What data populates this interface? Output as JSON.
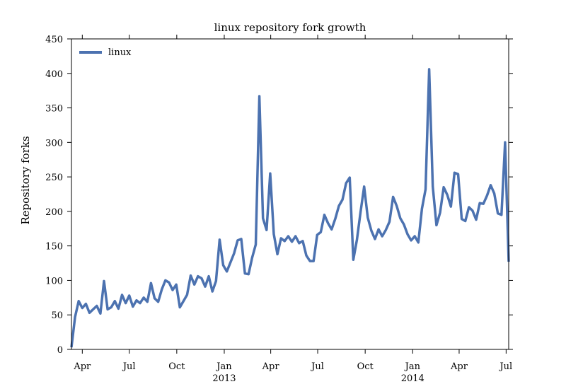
{
  "chart_data": {
    "type": "line",
    "title": "linux repository fork growth",
    "xlabel": "",
    "ylabel": "Repository forks",
    "ylim": [
      0,
      450
    ],
    "yticks": [
      0,
      50,
      100,
      150,
      200,
      250,
      300,
      350,
      400,
      450
    ],
    "xlim": [
      "2012-03-11",
      "2014-07-06"
    ],
    "xticks": [
      {
        "date": "2012-04-01",
        "label": "Apr",
        "sublabel": ""
      },
      {
        "date": "2012-07-01",
        "label": "Jul",
        "sublabel": ""
      },
      {
        "date": "2012-10-01",
        "label": "Oct",
        "sublabel": ""
      },
      {
        "date": "2013-01-01",
        "label": "Jan",
        "sublabel": "2013"
      },
      {
        "date": "2013-04-01",
        "label": "Apr",
        "sublabel": ""
      },
      {
        "date": "2013-07-01",
        "label": "Jul",
        "sublabel": ""
      },
      {
        "date": "2013-10-01",
        "label": "Oct",
        "sublabel": ""
      },
      {
        "date": "2014-01-01",
        "label": "Jan",
        "sublabel": "2014"
      },
      {
        "date": "2014-04-01",
        "label": "Apr",
        "sublabel": ""
      },
      {
        "date": "2014-07-01",
        "label": "Jul",
        "sublabel": ""
      }
    ],
    "legend": {
      "placement": "top-left"
    },
    "grid": false,
    "series": [
      {
        "name": "linux",
        "color": "#4c72b0",
        "points": [
          [
            "2012-03-11",
            3
          ],
          [
            "2012-03-18",
            47
          ],
          [
            "2012-03-25",
            70
          ],
          [
            "2012-04-01",
            60
          ],
          [
            "2012-04-08",
            66
          ],
          [
            "2012-04-15",
            53
          ],
          [
            "2012-04-22",
            58
          ],
          [
            "2012-04-29",
            63
          ],
          [
            "2012-05-06",
            52
          ],
          [
            "2012-05-13",
            99
          ],
          [
            "2012-05-20",
            58
          ],
          [
            "2012-05-27",
            61
          ],
          [
            "2012-06-03",
            70
          ],
          [
            "2012-06-10",
            59
          ],
          [
            "2012-06-17",
            79
          ],
          [
            "2012-06-24",
            67
          ],
          [
            "2012-07-01",
            78
          ],
          [
            "2012-07-08",
            62
          ],
          [
            "2012-07-15",
            71
          ],
          [
            "2012-07-22",
            67
          ],
          [
            "2012-07-29",
            75
          ],
          [
            "2012-08-05",
            69
          ],
          [
            "2012-08-12",
            96
          ],
          [
            "2012-08-19",
            74
          ],
          [
            "2012-08-26",
            69
          ],
          [
            "2012-09-02",
            87
          ],
          [
            "2012-09-09",
            100
          ],
          [
            "2012-09-16",
            97
          ],
          [
            "2012-09-23",
            86
          ],
          [
            "2012-09-30",
            94
          ],
          [
            "2012-10-07",
            61
          ],
          [
            "2012-10-14",
            70
          ],
          [
            "2012-10-21",
            79
          ],
          [
            "2012-10-28",
            107
          ],
          [
            "2012-11-04",
            94
          ],
          [
            "2012-11-11",
            106
          ],
          [
            "2012-11-18",
            103
          ],
          [
            "2012-11-25",
            91
          ],
          [
            "2012-12-02",
            106
          ],
          [
            "2012-12-09",
            84
          ],
          [
            "2012-12-16",
            99
          ],
          [
            "2012-12-23",
            159
          ],
          [
            "2012-12-30",
            122
          ],
          [
            "2013-01-06",
            113
          ],
          [
            "2013-01-13",
            126
          ],
          [
            "2013-01-20",
            139
          ],
          [
            "2013-01-27",
            158
          ],
          [
            "2013-02-03",
            160
          ],
          [
            "2013-02-10",
            110
          ],
          [
            "2013-02-17",
            109
          ],
          [
            "2013-02-24",
            133
          ],
          [
            "2013-03-03",
            152
          ],
          [
            "2013-03-10",
            367
          ],
          [
            "2013-03-17",
            190
          ],
          [
            "2013-03-24",
            173
          ],
          [
            "2013-03-31",
            255
          ],
          [
            "2013-04-07",
            167
          ],
          [
            "2013-04-14",
            138
          ],
          [
            "2013-04-21",
            161
          ],
          [
            "2013-04-28",
            157
          ],
          [
            "2013-05-05",
            164
          ],
          [
            "2013-05-12",
            156
          ],
          [
            "2013-05-19",
            164
          ],
          [
            "2013-05-26",
            154
          ],
          [
            "2013-06-02",
            157
          ],
          [
            "2013-06-09",
            136
          ],
          [
            "2013-06-16",
            128
          ],
          [
            "2013-06-23",
            128
          ],
          [
            "2013-06-30",
            166
          ],
          [
            "2013-07-07",
            170
          ],
          [
            "2013-07-14",
            195
          ],
          [
            "2013-07-21",
            183
          ],
          [
            "2013-07-28",
            174
          ],
          [
            "2013-08-04",
            189
          ],
          [
            "2013-08-11",
            208
          ],
          [
            "2013-08-18",
            217
          ],
          [
            "2013-08-25",
            241
          ],
          [
            "2013-09-01",
            249
          ],
          [
            "2013-09-08",
            130
          ],
          [
            "2013-09-15",
            159
          ],
          [
            "2013-09-22",
            199
          ],
          [
            "2013-09-29",
            236
          ],
          [
            "2013-10-06",
            191
          ],
          [
            "2013-10-13",
            172
          ],
          [
            "2013-10-20",
            160
          ],
          [
            "2013-10-27",
            174
          ],
          [
            "2013-11-03",
            164
          ],
          [
            "2013-11-10",
            173
          ],
          [
            "2013-11-17",
            185
          ],
          [
            "2013-11-24",
            221
          ],
          [
            "2013-12-01",
            208
          ],
          [
            "2013-12-08",
            190
          ],
          [
            "2013-12-15",
            181
          ],
          [
            "2013-12-22",
            167
          ],
          [
            "2013-12-29",
            158
          ],
          [
            "2014-01-05",
            164
          ],
          [
            "2014-01-12",
            155
          ],
          [
            "2014-01-19",
            204
          ],
          [
            "2014-01-26",
            232
          ],
          [
            "2014-02-02",
            406
          ],
          [
            "2014-02-09",
            236
          ],
          [
            "2014-02-16",
            180
          ],
          [
            "2014-02-23",
            198
          ],
          [
            "2014-03-02",
            235
          ],
          [
            "2014-03-09",
            224
          ],
          [
            "2014-03-16",
            207
          ],
          [
            "2014-03-23",
            256
          ],
          [
            "2014-03-30",
            254
          ],
          [
            "2014-04-06",
            189
          ],
          [
            "2014-04-13",
            186
          ],
          [
            "2014-04-20",
            206
          ],
          [
            "2014-04-27",
            201
          ],
          [
            "2014-05-04",
            188
          ],
          [
            "2014-05-11",
            212
          ],
          [
            "2014-05-18",
            211
          ],
          [
            "2014-05-25",
            223
          ],
          [
            "2014-06-01",
            238
          ],
          [
            "2014-06-08",
            226
          ],
          [
            "2014-06-15",
            197
          ],
          [
            "2014-06-22",
            195
          ],
          [
            "2014-06-29",
            300
          ],
          [
            "2014-07-06",
            127
          ]
        ]
      }
    ]
  }
}
